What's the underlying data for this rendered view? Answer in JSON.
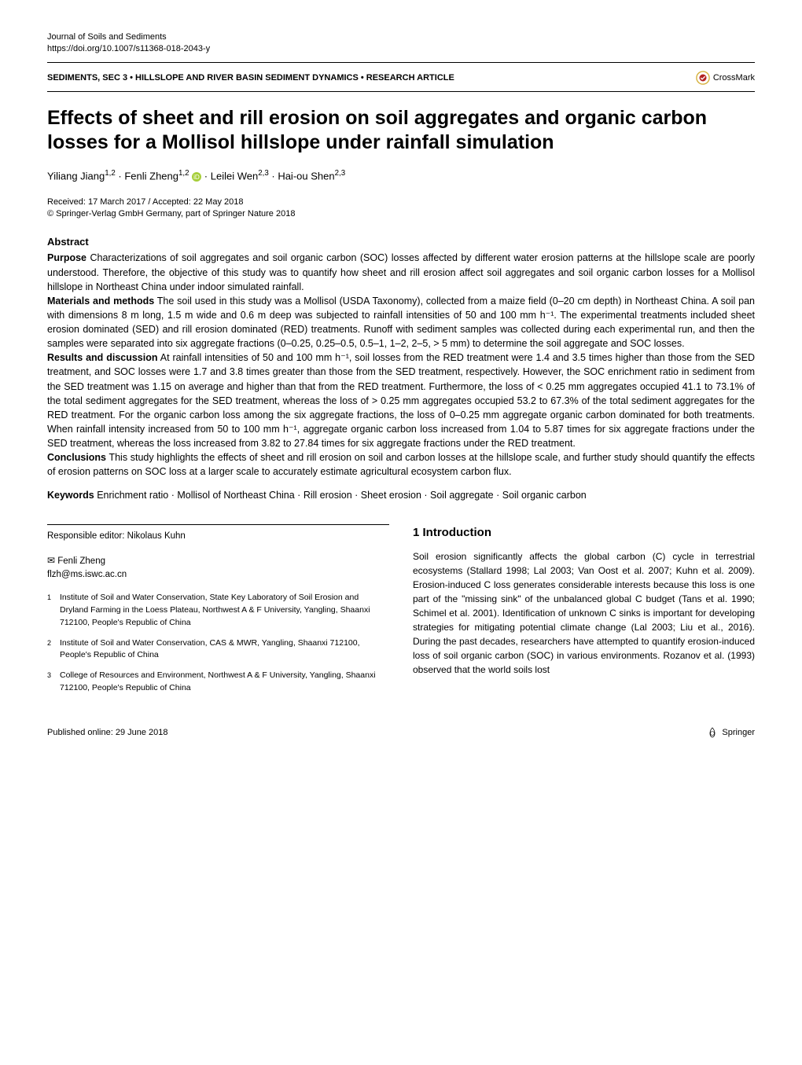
{
  "header": {
    "journal": "Journal of Soils and Sediments",
    "doi": "https://doi.org/10.1007/s11368-018-2043-y",
    "section_tag": "SEDIMENTS, SEC 3 • HILLSLOPE AND RIVER BASIN SEDIMENT DYNAMICS • RESEARCH ARTICLE",
    "crossmark": "CrossMark"
  },
  "title": "Effects of sheet and rill erosion on soil aggregates and organic carbon losses for a Mollisol hillslope under rainfall simulation",
  "authors_html": "Yiliang Jiang<sup>1,2</sup> · Fenli Zheng<sup>1,2</sup> <span class='orcid-icon'><svg viewBox='0 0 16 16'><circle cx='8' cy='8' r='8' fill='#A6CE39'/><text x='8' y='12' text-anchor='middle' font-size='11' fill='#fff' font-family='Arial'>iD</text></svg></span> · Leilei Wen<sup>2,3</sup> · Hai-ou Shen<sup>2,3</sup>",
  "dates": {
    "received_accepted": "Received: 17 March 2017 / Accepted: 22 May 2018",
    "copyright": "© Springer-Verlag GmbH Germany, part of Springer Nature 2018"
  },
  "abstract": {
    "label": "Abstract",
    "purpose_label": "Purpose",
    "purpose": " Characterizations of soil aggregates and soil organic carbon (SOC) losses affected by different water erosion patterns at the hillslope scale are poorly understood. Therefore, the objective of this study was to quantify how sheet and rill erosion affect soil aggregates and soil organic carbon losses for a Mollisol hillslope in Northeast China under indoor simulated rainfall.",
    "methods_label": "Materials and methods",
    "methods": " The soil used in this study was a Mollisol (USDA Taxonomy), collected from a maize field (0–20 cm depth) in Northeast China. A soil pan with dimensions 8 m long, 1.5 m wide and 0.6 m deep was subjected to rainfall intensities of 50 and 100 mm h⁻¹. The experimental treatments included sheet erosion dominated (SED) and rill erosion dominated (RED) treatments. Runoff with sediment samples was collected during each experimental run, and then the samples were separated into six aggregate fractions (0–0.25, 0.25–0.5, 0.5–1, 1–2, 2–5, > 5 mm) to determine the soil aggregate and SOC losses.",
    "results_label": "Results and discussion",
    "results": " At rainfall intensities of 50 and 100 mm h⁻¹, soil losses from the RED treatment were 1.4 and 3.5 times higher than those from the SED treatment, and SOC losses were 1.7 and 3.8 times greater than those from the SED treatment, respectively. However, the SOC enrichment ratio in sediment from the SED treatment was 1.15 on average and higher than that from the RED treatment. Furthermore, the loss of < 0.25 mm aggregates occupied 41.1 to 73.1% of the total sediment aggregates for the SED treatment, whereas the loss of > 0.25 mm aggregates occupied 53.2 to 67.3% of the total sediment aggregates for the RED treatment. For the organic carbon loss among the six aggregate fractions, the loss of 0–0.25 mm aggregate organic carbon dominated for both treatments. When rainfall intensity increased from 50 to 100 mm h⁻¹, aggregate organic carbon loss increased from 1.04 to 5.87 times for six aggregate fractions under the SED treatment, whereas the loss increased from 3.82 to 27.84 times for six aggregate fractions under the RED treatment.",
    "conclusions_label": "Conclusions",
    "conclusions": " This study highlights the effects of sheet and rill erosion on soil and carbon losses at the hillslope scale, and further study should quantify the effects of erosion patterns on SOC loss at a larger scale to accurately estimate agricultural ecosystem carbon flux."
  },
  "keywords": {
    "label": "Keywords",
    "text": " Enrichment ratio · Mollisol of Northeast China · Rill erosion · Sheet erosion · Soil aggregate · Soil organic carbon"
  },
  "editor": "Responsible editor: Nikolaus Kuhn",
  "corresponding": {
    "name": "Fenli Zheng",
    "email": "flzh@ms.iswc.ac.cn"
  },
  "affiliations": [
    {
      "n": "1",
      "text": "Institute of Soil and Water Conservation, State Key Laboratory of Soil Erosion and Dryland Farming in the Loess Plateau, Northwest A & F University, Yangling, Shaanxi 712100, People's Republic of China"
    },
    {
      "n": "2",
      "text": "Institute of Soil and Water Conservation, CAS & MWR, Yangling, Shaanxi 712100, People's Republic of China"
    },
    {
      "n": "3",
      "text": "College of Resources and Environment, Northwest A & F University, Yangling, Shaanxi 712100, People's Republic of China"
    }
  ],
  "intro": {
    "heading": "1 Introduction",
    "body": "Soil erosion significantly affects the global carbon (C) cycle in terrestrial ecosystems (Stallard 1998; Lal 2003; Van Oost et al. 2007; Kuhn et al. 2009). Erosion-induced C loss generates considerable interests because this loss is one part of the \"missing sink\" of the unbalanced global C budget (Tans et al. 1990; Schimel et al. 2001). Identification of unknown C sinks is important for developing strategies for mitigating potential climate change (Lal 2003; Liu et al., 2016). During the past decades, researchers have attempted to quantify erosion-induced loss of soil organic carbon (SOC) in various environments. Rozanov et al. (1993) observed that the world soils lost"
  },
  "footer": {
    "published": "Published online: 29 June 2018",
    "publisher": "Springer"
  },
  "colors": {
    "text": "#000000",
    "orcid": "#A6CE39",
    "crossmark_outer": "#d4af37",
    "crossmark_inner": "#b22222"
  }
}
